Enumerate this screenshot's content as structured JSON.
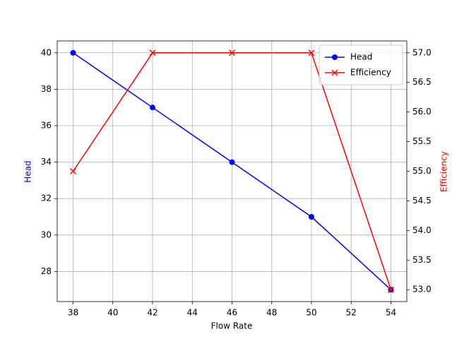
{
  "chart_data": {
    "type": "line",
    "x": [
      38,
      42,
      46,
      50,
      54
    ],
    "x_label": "Flow Rate",
    "y_label": "Head",
    "y2_label": "Efficiency",
    "xlim": [
      37.2,
      54.8
    ],
    "xticks": [
      38,
      40,
      42,
      44,
      46,
      48,
      50,
      52,
      54
    ],
    "ylim": [
      26.35,
      40.65
    ],
    "yticks": [
      28,
      30,
      32,
      34,
      36,
      38,
      40
    ],
    "y2lim": [
      52.8,
      57.2
    ],
    "y2ticks": [
      {
        "value": 53,
        "label": "53.0"
      },
      {
        "value": 53.5,
        "label": "53.5"
      },
      {
        "value": 54,
        "label": "54.0"
      },
      {
        "value": 54.5,
        "label": "54.5"
      },
      {
        "value": 55,
        "label": "55.0"
      },
      {
        "value": 55.5,
        "label": "55.5"
      },
      {
        "value": 56,
        "label": "56.0"
      },
      {
        "value": 56.5,
        "label": "56.5"
      },
      {
        "value": 57,
        "label": "57.0"
      }
    ],
    "grid": true,
    "legend": "upper right",
    "series": [
      {
        "name": "Head",
        "color": "#0000ff",
        "marker": "circle",
        "axis": "y",
        "values": [
          40,
          37,
          34,
          31,
          27
        ]
      },
      {
        "name": "Efficiency",
        "color": "#ff0000",
        "marker": "x",
        "axis": "y2",
        "values": [
          55,
          57,
          57,
          57,
          53
        ]
      }
    ]
  }
}
